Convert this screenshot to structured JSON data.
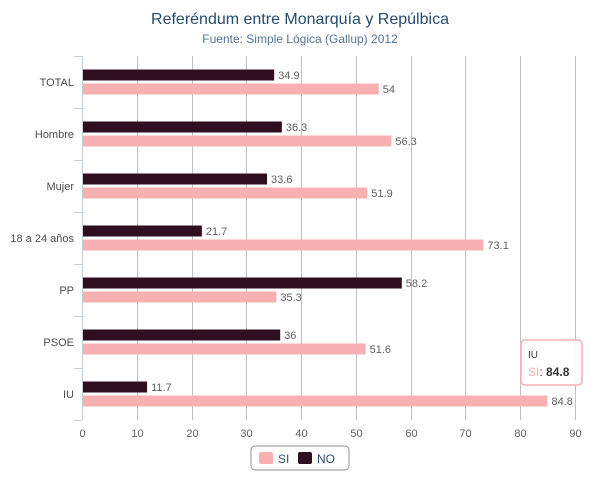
{
  "chart_data": {
    "type": "bar",
    "orientation": "horizontal",
    "title": "Referéndum entre Monarquía y Repúlbica",
    "subtitle": "Fuente: Simple Lógica (Gallup) 2012",
    "categories": [
      "TOTAL",
      "Hombre",
      "Mujer",
      "18 a 24 años",
      "PP",
      "PSOE",
      "IU"
    ],
    "series": [
      {
        "name": "NO",
        "color": "#2f0e20",
        "values": [
          34.9,
          36.3,
          33.6,
          21.7,
          58.2,
          36,
          11.7
        ]
      },
      {
        "name": "SI",
        "color": "#f9b0b3",
        "values": [
          54,
          56.3,
          51.9,
          73.1,
          35.3,
          51.6,
          84.8
        ]
      }
    ],
    "xlim": [
      0,
      90
    ],
    "xticks": [
      "0",
      "10",
      "20",
      "30",
      "40",
      "50",
      "60",
      "70",
      "80",
      "90"
    ],
    "grid": true,
    "legend": {
      "position": "bottom-center",
      "items": [
        "SI",
        "NO"
      ]
    },
    "tooltip": {
      "category": "IU",
      "series": "SI",
      "value": "84.8"
    }
  }
}
